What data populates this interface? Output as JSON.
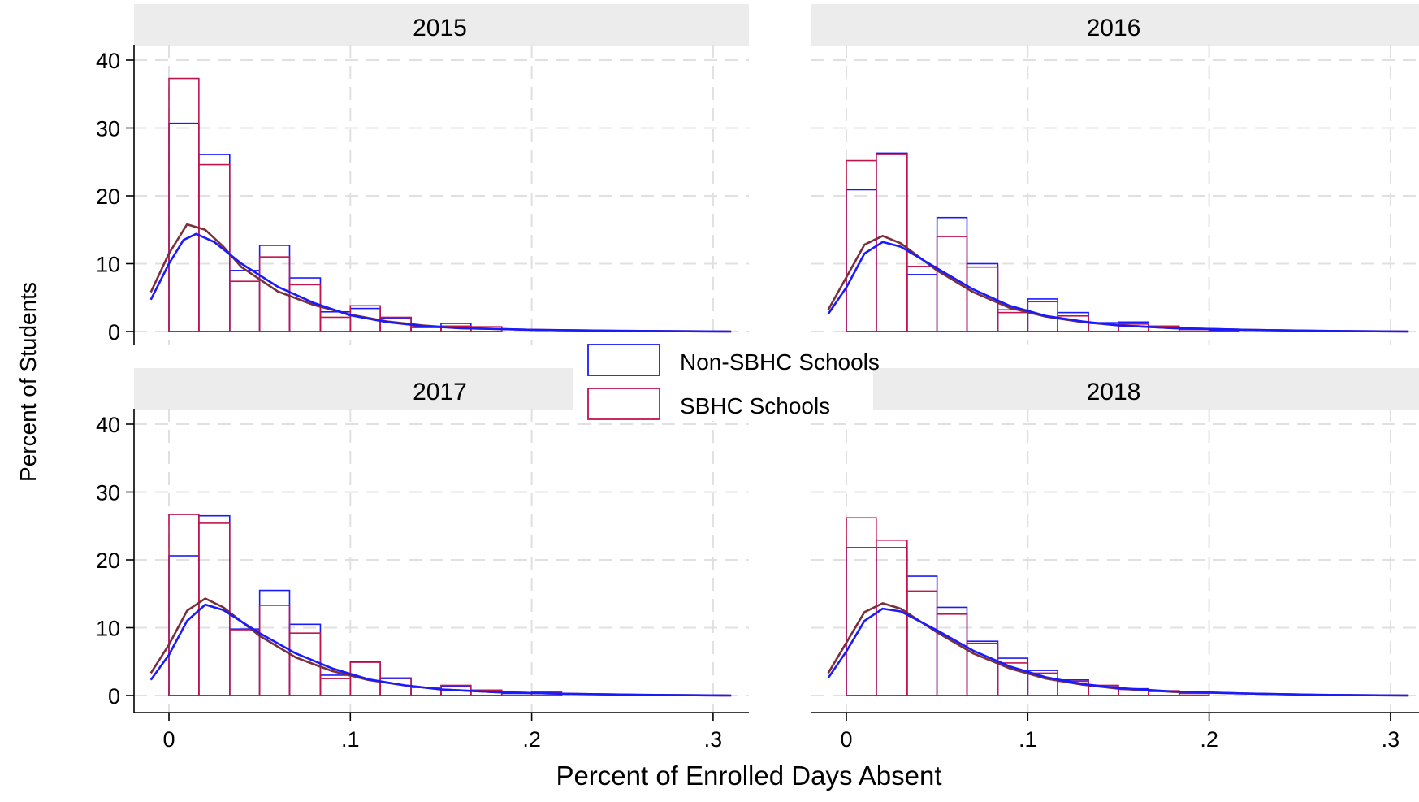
{
  "chart_data": {
    "type": "bar",
    "xlabel": "Percent of Enrolled Days Absent",
    "ylabel": "Percent of Students",
    "xlim": [
      -0.02,
      0.32
    ],
    "ylim": [
      0,
      40
    ],
    "x_ticks": [
      {
        "value": 0,
        "label": "0"
      },
      {
        "value": 0.1,
        "label": ".1"
      },
      {
        "value": 0.2,
        "label": ".2"
      },
      {
        "value": 0.3,
        "label": ".3"
      }
    ],
    "y_ticks": [
      {
        "value": 0,
        "label": "0"
      },
      {
        "value": 10,
        "label": "10"
      },
      {
        "value": 20,
        "label": "20"
      },
      {
        "value": 30,
        "label": "30"
      },
      {
        "value": 40,
        "label": "40"
      }
    ],
    "grid": true,
    "legend_position": "center",
    "series": [
      {
        "name": "Non-SBHC Schools",
        "color": "#1a1aff"
      },
      {
        "name": "SBHC Schools",
        "color": "#c0144a"
      }
    ],
    "kde_colors": [
      "#1a1aff",
      "#7a2f3a"
    ],
    "panels": [
      {
        "title": "2015",
        "bins": [
          [
            0,
            0.0165
          ],
          [
            0.0165,
            0.0335
          ],
          [
            0.0335,
            0.05
          ],
          [
            0.05,
            0.0665
          ],
          [
            0.0665,
            0.0835
          ],
          [
            0.0835,
            0.1
          ],
          [
            0.1,
            0.1165
          ],
          [
            0.1165,
            0.1335
          ],
          [
            0.1335,
            0.15
          ],
          [
            0.15,
            0.1665
          ],
          [
            0.1665,
            0.1835
          ]
        ],
        "non_sbhc": [
          30.7,
          26.1,
          9.0,
          12.7,
          7.9,
          2.9,
          3.4,
          2.0,
          0.6,
          1.2,
          0.4
        ],
        "sbhc": [
          37.3,
          24.6,
          7.4,
          11.0,
          6.9,
          2.1,
          3.8,
          2.1,
          0.7,
          0.8,
          0.7
        ],
        "kde_non_sbhc": [
          [
            -0.01,
            4.7
          ],
          [
            0,
            10
          ],
          [
            0.008,
            13.5
          ],
          [
            0.015,
            14.4
          ],
          [
            0.025,
            13.2
          ],
          [
            0.04,
            10
          ],
          [
            0.06,
            6.6
          ],
          [
            0.08,
            4.2
          ],
          [
            0.1,
            2.4
          ],
          [
            0.12,
            1.4
          ],
          [
            0.14,
            0.8
          ],
          [
            0.16,
            0.5
          ],
          [
            0.2,
            0.25
          ],
          [
            0.25,
            0.1
          ],
          [
            0.31,
            0
          ]
        ],
        "kde_sbhc": [
          [
            -0.01,
            5.8
          ],
          [
            0,
            11.5
          ],
          [
            0.01,
            15.8
          ],
          [
            0.02,
            15
          ],
          [
            0.03,
            12.5
          ],
          [
            0.04,
            9.5
          ],
          [
            0.06,
            5.9
          ],
          [
            0.08,
            3.9
          ],
          [
            0.1,
            2.5
          ],
          [
            0.12,
            1.5
          ],
          [
            0.14,
            0.9
          ],
          [
            0.16,
            0.5
          ],
          [
            0.2,
            0.25
          ],
          [
            0.25,
            0.1
          ],
          [
            0.31,
            0
          ]
        ]
      },
      {
        "title": "2016",
        "bins": [
          [
            0,
            0.0165
          ],
          [
            0.0165,
            0.0335
          ],
          [
            0.0335,
            0.05
          ],
          [
            0.05,
            0.0665
          ],
          [
            0.0665,
            0.0835
          ],
          [
            0.0835,
            0.1
          ],
          [
            0.1,
            0.1165
          ],
          [
            0.1165,
            0.1335
          ],
          [
            0.1335,
            0.15
          ],
          [
            0.15,
            0.1665
          ],
          [
            0.1665,
            0.1835
          ],
          [
            0.1835,
            0.2
          ],
          [
            0.2,
            0.2165
          ]
        ],
        "non_sbhc": [
          20.9,
          26.3,
          8.4,
          16.8,
          10.0,
          3.2,
          4.8,
          2.8,
          1.3,
          1.4,
          0.7,
          0.3,
          0.2
        ],
        "sbhc": [
          25.2,
          26.1,
          9.6,
          14.0,
          9.5,
          2.8,
          4.4,
          2.3,
          1.2,
          1.1,
          0.8,
          0.3,
          0.3
        ],
        "kde_non_sbhc": [
          [
            -0.01,
            2.6
          ],
          [
            0,
            6.5
          ],
          [
            0.01,
            11.5
          ],
          [
            0.02,
            13.2
          ],
          [
            0.03,
            12.5
          ],
          [
            0.05,
            9.3
          ],
          [
            0.07,
            6.2
          ],
          [
            0.09,
            3.8
          ],
          [
            0.11,
            2.3
          ],
          [
            0.13,
            1.5
          ],
          [
            0.15,
            0.9
          ],
          [
            0.18,
            0.5
          ],
          [
            0.22,
            0.25
          ],
          [
            0.26,
            0.1
          ],
          [
            0.31,
            0
          ]
        ],
        "kde_sbhc": [
          [
            -0.01,
            3.2
          ],
          [
            0,
            8
          ],
          [
            0.01,
            12.8
          ],
          [
            0.02,
            14.1
          ],
          [
            0.03,
            13
          ],
          [
            0.05,
            9
          ],
          [
            0.07,
            5.8
          ],
          [
            0.09,
            3.5
          ],
          [
            0.11,
            2.2
          ],
          [
            0.13,
            1.4
          ],
          [
            0.15,
            0.9
          ],
          [
            0.18,
            0.5
          ],
          [
            0.22,
            0.25
          ],
          [
            0.26,
            0.1
          ],
          [
            0.31,
            0
          ]
        ]
      },
      {
        "title": "2017",
        "bins": [
          [
            0,
            0.0165
          ],
          [
            0.0165,
            0.0335
          ],
          [
            0.0335,
            0.05
          ],
          [
            0.05,
            0.0665
          ],
          [
            0.0665,
            0.0835
          ],
          [
            0.0835,
            0.1
          ],
          [
            0.1,
            0.1165
          ],
          [
            0.1165,
            0.1335
          ],
          [
            0.1335,
            0.15
          ],
          [
            0.15,
            0.1665
          ],
          [
            0.1665,
            0.1835
          ],
          [
            0.1835,
            0.2
          ],
          [
            0.2,
            0.2165
          ]
        ],
        "non_sbhc": [
          20.6,
          26.5,
          9.8,
          15.5,
          10.5,
          3.0,
          5.0,
          2.5,
          1.2,
          1.4,
          0.7,
          0.3,
          0.3
        ],
        "sbhc": [
          26.7,
          25.4,
          9.7,
          13.3,
          9.2,
          2.5,
          4.9,
          2.6,
          1.2,
          1.5,
          0.8,
          0.4,
          0.5
        ],
        "kde_non_sbhc": [
          [
            -0.01,
            2.3
          ],
          [
            0,
            6
          ],
          [
            0.01,
            11
          ],
          [
            0.02,
            13.4
          ],
          [
            0.03,
            12.6
          ],
          [
            0.05,
            9.2
          ],
          [
            0.07,
            6.2
          ],
          [
            0.09,
            4
          ],
          [
            0.11,
            2.4
          ],
          [
            0.13,
            1.5
          ],
          [
            0.15,
            0.9
          ],
          [
            0.18,
            0.5
          ],
          [
            0.22,
            0.25
          ],
          [
            0.26,
            0.1
          ],
          [
            0.31,
            0
          ]
        ],
        "kde_sbhc": [
          [
            -0.01,
            3.3
          ],
          [
            0,
            7.5
          ],
          [
            0.01,
            12.5
          ],
          [
            0.02,
            14.3
          ],
          [
            0.03,
            13
          ],
          [
            0.05,
            8.8
          ],
          [
            0.07,
            5.6
          ],
          [
            0.09,
            3.6
          ],
          [
            0.11,
            2.3
          ],
          [
            0.13,
            1.5
          ],
          [
            0.15,
            0.9
          ],
          [
            0.18,
            0.5
          ],
          [
            0.22,
            0.25
          ],
          [
            0.26,
            0.1
          ],
          [
            0.31,
            0
          ]
        ]
      },
      {
        "title": "2018",
        "bins": [
          [
            0,
            0.0165
          ],
          [
            0.0165,
            0.0335
          ],
          [
            0.0335,
            0.05
          ],
          [
            0.05,
            0.0665
          ],
          [
            0.0665,
            0.0835
          ],
          [
            0.0835,
            0.1
          ],
          [
            0.1,
            0.1165
          ],
          [
            0.1165,
            0.1335
          ],
          [
            0.1335,
            0.15
          ],
          [
            0.15,
            0.1665
          ],
          [
            0.1665,
            0.1835
          ],
          [
            0.1835,
            0.2
          ]
        ],
        "non_sbhc": [
          21.8,
          21.8,
          17.6,
          13.0,
          8.0,
          5.5,
          3.7,
          2.3,
          1.3,
          1.0,
          0.6,
          0.4
        ],
        "sbhc": [
          26.2,
          22.9,
          15.4,
          12.0,
          7.7,
          4.8,
          3.3,
          2.1,
          1.5,
          0.9,
          0.7,
          0.3
        ],
        "kde_non_sbhc": [
          [
            -0.01,
            2.6
          ],
          [
            0,
            6.5
          ],
          [
            0.01,
            11
          ],
          [
            0.02,
            12.8
          ],
          [
            0.03,
            12.4
          ],
          [
            0.05,
            9.6
          ],
          [
            0.07,
            6.6
          ],
          [
            0.09,
            4.3
          ],
          [
            0.11,
            2.7
          ],
          [
            0.13,
            1.7
          ],
          [
            0.15,
            1.1
          ],
          [
            0.18,
            0.6
          ],
          [
            0.22,
            0.3
          ],
          [
            0.26,
            0.1
          ],
          [
            0.31,
            0
          ]
        ],
        "kde_sbhc": [
          [
            -0.01,
            3.3
          ],
          [
            0,
            7.8
          ],
          [
            0.01,
            12.3
          ],
          [
            0.02,
            13.6
          ],
          [
            0.03,
            12.8
          ],
          [
            0.05,
            9.3
          ],
          [
            0.07,
            6.2
          ],
          [
            0.09,
            4
          ],
          [
            0.11,
            2.5
          ],
          [
            0.13,
            1.6
          ],
          [
            0.15,
            1
          ],
          [
            0.18,
            0.55
          ],
          [
            0.22,
            0.3
          ],
          [
            0.26,
            0.1
          ],
          [
            0.31,
            0
          ]
        ]
      }
    ]
  }
}
